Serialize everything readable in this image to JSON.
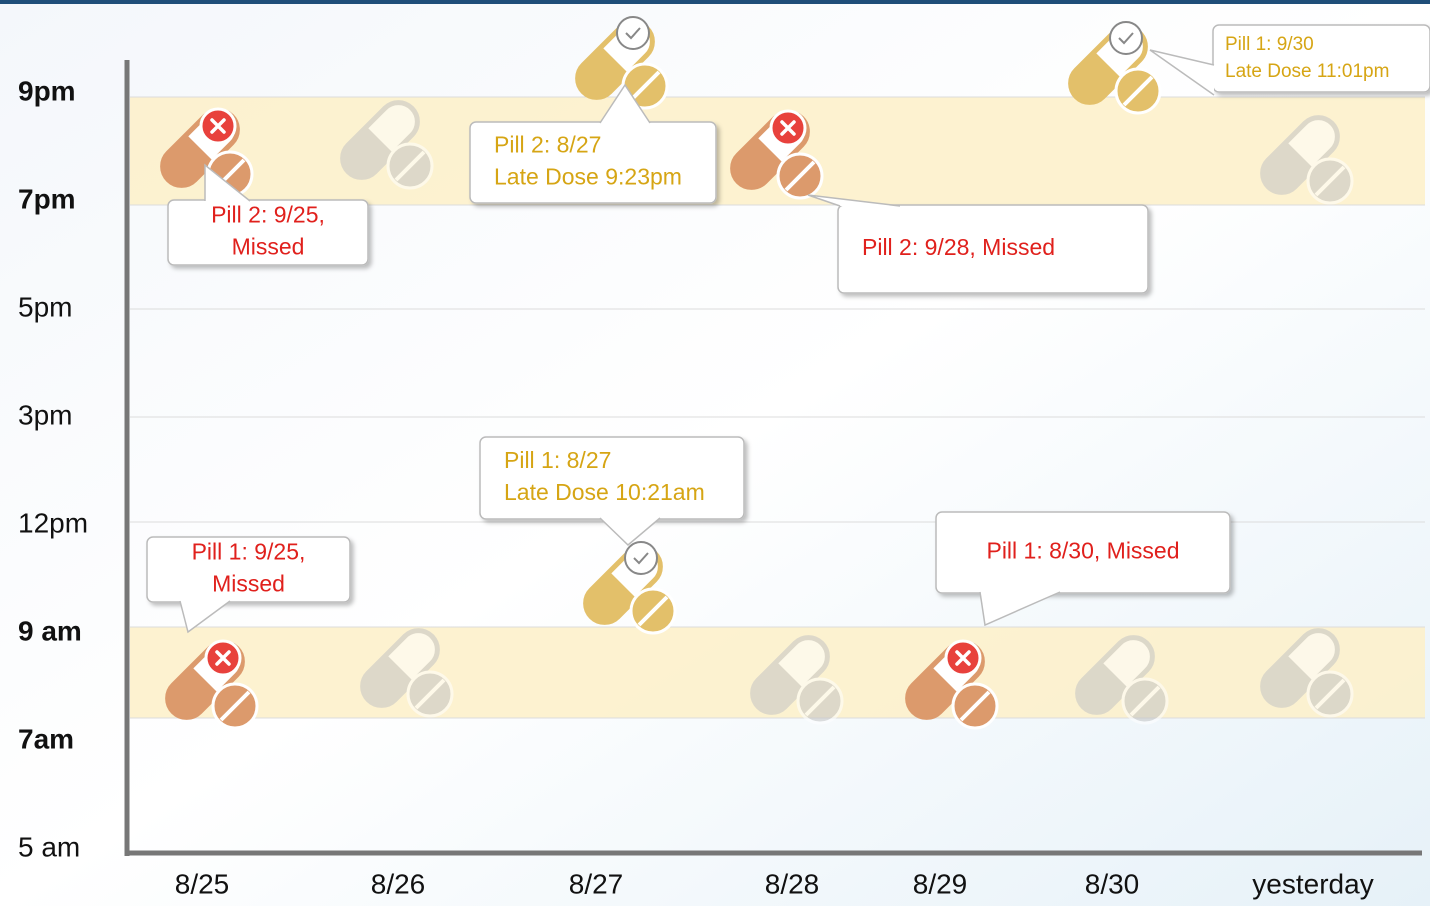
{
  "y_labels": [
    {
      "text": "9pm",
      "bold": true
    },
    {
      "text": "7pm",
      "bold": true
    },
    {
      "text": "5pm",
      "bold": false
    },
    {
      "text": "3pm",
      "bold": false
    },
    {
      "text": "12pm",
      "bold": false
    },
    {
      "text": "9 am",
      "bold": true
    },
    {
      "text": "7am",
      "bold": true
    },
    {
      "text": "5 am",
      "bold": false
    }
  ],
  "x_labels": [
    "8/25",
    "8/26",
    "8/27",
    "8/28",
    "8/29",
    "8/30",
    "yesterday"
  ],
  "callouts": [
    {
      "lines": [
        "Pill 2: 9/25,",
        "Missed"
      ],
      "color": "#e0201c"
    },
    {
      "lines": [
        "Pill 2: 8/27",
        "Late Dose 9:23pm"
      ],
      "color": "#d6a514"
    },
    {
      "lines": [
        "Pill 2: 9/28,  Missed"
      ],
      "color": "#e0201c"
    },
    {
      "lines": [
        "Pill 1: 9/30",
        "Late Dose 11:01pm"
      ],
      "color": "#d6a514"
    },
    {
      "lines": [
        "Pill 1: 8/27",
        "Late Dose 10:21am"
      ],
      "color": "#d6a514"
    },
    {
      "lines": [
        "Pill 1: 9/25,",
        "Missed"
      ],
      "color": "#e0201c"
    },
    {
      "lines": [
        "Pill 1: 8/30, Missed"
      ],
      "color": "#e0201c"
    }
  ]
}
